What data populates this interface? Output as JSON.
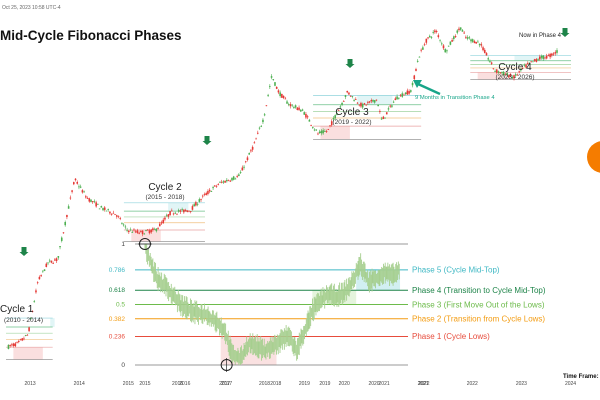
{
  "header": {
    "date_text": "Oct 25, 2023 10:58 UTC-4",
    "title": "Mid-Cycle Fibonacci Phases",
    "time_frame_label": "Time Frame:"
  },
  "colors": {
    "candle_up": "#4caf50",
    "candle_down": "#e53935",
    "orange_badge": "#f57c00",
    "transition_arrow": "#17a589",
    "phase_green": "#1e8449"
  },
  "chart_data": [
    {
      "type": "line",
      "title": "Mid-Cycle Fibonacci Phases",
      "x_axis_ticks": [
        "2013",
        "2014",
        "2015",
        "2016",
        "2017",
        "2018",
        "2019",
        "2020",
        "2021",
        "2022",
        "2023",
        "2024"
      ],
      "grid": false,
      "y_scale": "log",
      "cycles": [
        {
          "label": "Cycle 1",
          "years": "(2010 - 2014)"
        },
        {
          "label": "Cycle 2",
          "years": "(2015 - 2018)"
        },
        {
          "label": "Cycle 3",
          "years": "(2019 - 2022)"
        },
        {
          "label": "Cycle 4",
          "years": "(2023 - 2026)"
        }
      ],
      "annotations": [
        {
          "text": "Now in Phase 4"
        },
        {
          "text": "9 Months in Transition Phase 4"
        }
      ],
      "series": [
        {
          "x": [
            2012.6,
            2012.8,
            2013.0,
            2013.2,
            2013.4,
            2013.6,
            2013.8,
            2013.95,
            2014.2,
            2014.5,
            2014.8,
            2015.0,
            2015.3,
            2015.6,
            2015.9,
            2016.3,
            2016.6,
            2016.9,
            2017.3,
            2017.6,
            2017.8,
            2017.96,
            2018.1,
            2018.3,
            2018.6,
            2018.9,
            2019.1,
            2019.5,
            2019.8,
            2020.1,
            2020.2,
            2020.5,
            2020.8,
            2020.95,
            2021.1,
            2021.3,
            2021.5,
            2021.8,
            2021.9,
            2022.2,
            2022.5,
            2022.9,
            2023.1,
            2023.4,
            2023.6,
            2023.8
          ],
          "values": [
            10,
            11,
            14,
            60,
            100,
            110,
            400,
            1000,
            600,
            450,
            380,
            250,
            230,
            250,
            400,
            430,
            650,
            900,
            1100,
            2600,
            5500,
            17000,
            11000,
            8000,
            6500,
            3500,
            3800,
            11000,
            7500,
            9000,
            5000,
            9500,
            11500,
            29000,
            45000,
            60000,
            34000,
            66000,
            50000,
            42000,
            20000,
            16500,
            22000,
            28000,
            29500,
            34500
          ]
        }
      ]
    },
    {
      "type": "line",
      "y_ticks": [
        0,
        0.236,
        0.382,
        0.5,
        0.618,
        0.786,
        1
      ],
      "ylim": [
        0,
        1
      ],
      "x_axis_ticks": [
        "2015",
        "2016",
        "2017",
        "2018",
        "2019",
        "2020",
        "2021",
        "2022"
      ],
      "phases": [
        {
          "text": "Phase 5 (Cycle Mid-Top)",
          "level": 0.786,
          "color": "#3fb8c4"
        },
        {
          "text": "Phase 4 (Transition to Cycle Mid-Top)",
          "level": 0.618,
          "color": "#1e8449"
        },
        {
          "text": "Phase 3 (First Move Out of the Lows)",
          "level": 0.5,
          "color": "#6dbb4b"
        },
        {
          "text": "Phase 2 (Transition from Cycle Lows)",
          "level": 0.382,
          "color": "#f39c12"
        },
        {
          "text": "Phase 1 (Cycle Lows)",
          "level": 0.236,
          "color": "#e74c3c"
        }
      ],
      "series": [
        {
          "x": [
            2015.0,
            2015.1,
            2015.3,
            2015.6,
            2015.9,
            2016.2,
            2016.5,
            2016.8,
            2017.0,
            2017.2,
            2017.4,
            2017.6,
            2017.8,
            2018.0,
            2018.2,
            2018.4,
            2018.6,
            2018.8,
            2019.0,
            2019.2,
            2019.4,
            2019.6,
            2019.8,
            2020.0,
            2020.2,
            2020.4,
            2020.6,
            2020.8,
            2021.0,
            2021.2,
            2021.4
          ],
          "values": [
            1.0,
            0.88,
            0.72,
            0.62,
            0.5,
            0.44,
            0.42,
            0.36,
            0.28,
            0.08,
            0.05,
            0.18,
            0.16,
            0.12,
            0.15,
            0.2,
            0.25,
            0.12,
            0.28,
            0.45,
            0.53,
            0.58,
            0.57,
            0.6,
            0.68,
            0.84,
            0.69,
            0.72,
            0.76,
            0.74,
            0.79
          ]
        }
      ]
    }
  ]
}
